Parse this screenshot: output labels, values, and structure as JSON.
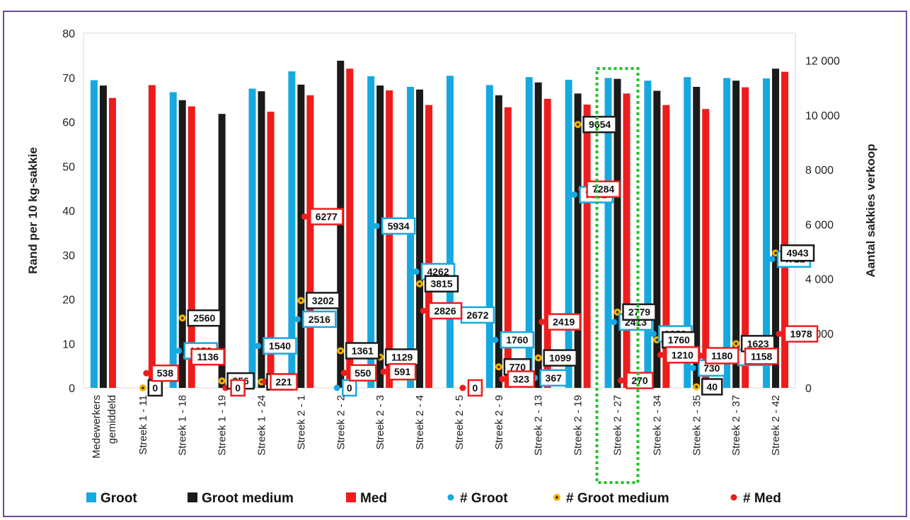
{
  "chart_data": {
    "type": "bar",
    "title": "",
    "ylabel": "Rand per 10 kg-sakkie",
    "y2label": "Aantal sakkies verkoop",
    "ylim": [
      0,
      80
    ],
    "y2lim": [
      0,
      13000
    ],
    "yticks": [
      "0",
      "10",
      "20",
      "30",
      "40",
      "50",
      "60",
      "70",
      "80"
    ],
    "y2ticks": [
      "0",
      "2 000",
      "4 000",
      "6 000",
      "8 000",
      "10 000",
      "12 000"
    ],
    "grid": false,
    "legend_position": "bottom",
    "highlight_category": "Streek 2 - 27",
    "categories": [
      "Medewerkers gemiddeld",
      "Streek 1 - 11",
      "Streek 1 - 18",
      "Streek 1 - 19",
      "Streek 1 - 24",
      "Streek 2 - 1",
      "Streek 2 - 2",
      "Streek 2 - 3",
      "Streek 2 - 4",
      "Streek 2 - 5",
      "Streek 2 - 9",
      "Streek 2 - 13",
      "Streek 2 - 19",
      "Streek 2 - 27",
      "Streek 2 - 34",
      "Streek 2 - 35",
      "Streek 2 - 37",
      "Streek 2 - 42"
    ],
    "series": [
      {
        "name": "Groot",
        "kind": "bar",
        "axis": "left",
        "color": "#16a8e0",
        "values": [
          69.4,
          null,
          66.7,
          null,
          67.5,
          71.4,
          null,
          70.3,
          67.9,
          70.4,
          68.3,
          70.1,
          69.5,
          69.9,
          69.3,
          70.1,
          69.9,
          69.8
        ]
      },
      {
        "name": "Groot medium",
        "kind": "bar",
        "axis": "left",
        "color": "#1a1a1a",
        "values": [
          68.2,
          null,
          64.9,
          61.8,
          66.9,
          68.4,
          73.8,
          68.2,
          67.3,
          null,
          66.0,
          68.9,
          66.4,
          69.7,
          67.0,
          67.9,
          69.3,
          72.0
        ]
      },
      {
        "name": "Med",
        "kind": "bar",
        "axis": "left",
        "color": "#ee1c1c",
        "values": [
          65.4,
          68.3,
          63.5,
          null,
          62.3,
          66.0,
          72.0,
          67.1,
          63.8,
          null,
          63.3,
          65.2,
          63.9,
          66.4,
          63.8,
          62.9,
          67.8,
          71.3
        ]
      },
      {
        "name": "# Groot",
        "kind": "point",
        "axis": "right",
        "color": "#16a8e0",
        "values": [
          null,
          null,
          1358,
          null,
          1540,
          2516,
          0,
          5934,
          4262,
          2672,
          1760,
          367,
          7082,
          2413,
          1980,
          730,
          1117,
          4721
        ]
      },
      {
        "name": "# Groot medium",
        "kind": "point",
        "axis": "right",
        "color": "#f0b400",
        "values": [
          null,
          0,
          2560,
          256,
          220,
          3202,
          1361,
          1129,
          3815,
          null,
          770,
          1099,
          9654,
          2779,
          1760,
          40,
          1623,
          4943
        ]
      },
      {
        "name": "# Med",
        "kind": "point",
        "axis": "right",
        "color": "#ee1c1c",
        "values": [
          null,
          538,
          1136,
          0,
          221,
          6277,
          550,
          591,
          2826,
          0,
          323,
          2419,
          7284,
          270,
          1210,
          1180,
          1158,
          1978
        ]
      }
    ]
  }
}
